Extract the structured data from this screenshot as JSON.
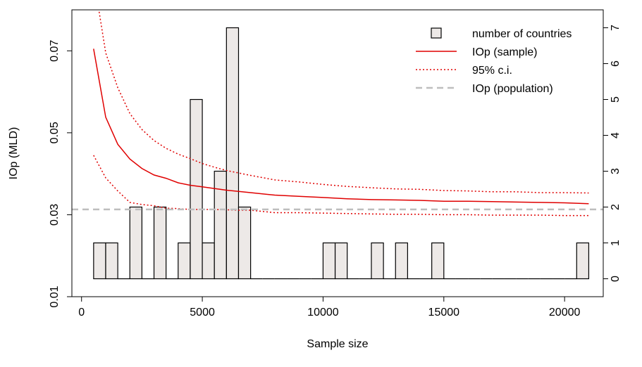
{
  "chart_data": {
    "type": "bar+line",
    "xlabel": "Sample size",
    "ylabel": "IOp (MLD)",
    "xlim": [
      -400,
      21600
    ],
    "ylim_left": [
      0.01,
      0.08
    ],
    "ylim_right": [
      -0.5,
      7.5
    ],
    "x_ticks": [
      0,
      5000,
      10000,
      15000,
      20000
    ],
    "x_tick_labels": [
      "0",
      "5000",
      "10000",
      "15000",
      "20000"
    ],
    "y_ticks_left": [
      0.01,
      0.03,
      0.05,
      0.07
    ],
    "y_tick_labels_left": [
      "0.01",
      "0.03",
      "0.05",
      "0.07"
    ],
    "y_ticks_right": [
      0,
      1,
      2,
      3,
      4,
      5,
      6,
      7
    ],
    "y_tick_labels_right": [
      "0",
      "1",
      "2",
      "3",
      "4",
      "5",
      "6",
      "7"
    ],
    "grid": false,
    "legend": {
      "position": "top-right",
      "entries": [
        {
          "label": "number of countries",
          "style": "box",
          "color": "#EDE9E7"
        },
        {
          "label": "IOp (sample)",
          "style": "solid",
          "color": "#E00000"
        },
        {
          "label": "95% c.i.",
          "style": "dotted",
          "color": "#E00000"
        },
        {
          "label": "IOp (population)",
          "style": "dashed",
          "color": "#BEBEBE"
        }
      ]
    },
    "histogram": {
      "bin_width": 500,
      "fill": "#EDE9E7",
      "bins": [
        {
          "x0": 500,
          "count": 1
        },
        {
          "x0": 1000,
          "count": 1
        },
        {
          "x0": 1500,
          "count": 0
        },
        {
          "x0": 2000,
          "count": 2
        },
        {
          "x0": 2500,
          "count": 0
        },
        {
          "x0": 3000,
          "count": 2
        },
        {
          "x0": 3500,
          "count": 0
        },
        {
          "x0": 4000,
          "count": 1
        },
        {
          "x0": 4500,
          "count": 5
        },
        {
          "x0": 5000,
          "count": 1
        },
        {
          "x0": 5500,
          "count": 3
        },
        {
          "x0": 6000,
          "count": 7
        },
        {
          "x0": 6500,
          "count": 2
        },
        {
          "x0": 7000,
          "count": 0
        },
        {
          "x0": 7500,
          "count": 0
        },
        {
          "x0": 8000,
          "count": 0
        },
        {
          "x0": 8500,
          "count": 0
        },
        {
          "x0": 9000,
          "count": 0
        },
        {
          "x0": 9500,
          "count": 0
        },
        {
          "x0": 10000,
          "count": 1
        },
        {
          "x0": 10500,
          "count": 1
        },
        {
          "x0": 11000,
          "count": 0
        },
        {
          "x0": 11500,
          "count": 0
        },
        {
          "x0": 12000,
          "count": 1
        },
        {
          "x0": 12500,
          "count": 0
        },
        {
          "x0": 13000,
          "count": 1
        },
        {
          "x0": 13500,
          "count": 0
        },
        {
          "x0": 14000,
          "count": 0
        },
        {
          "x0": 14500,
          "count": 1
        },
        {
          "x0": 15000,
          "count": 0
        },
        {
          "x0": 15500,
          "count": 0
        },
        {
          "x0": 16000,
          "count": 0
        },
        {
          "x0": 16500,
          "count": 0
        },
        {
          "x0": 17000,
          "count": 0
        },
        {
          "x0": 17500,
          "count": 0
        },
        {
          "x0": 18000,
          "count": 0
        },
        {
          "x0": 18500,
          "count": 0
        },
        {
          "x0": 19000,
          "count": 0
        },
        {
          "x0": 19500,
          "count": 0
        },
        {
          "x0": 20000,
          "count": 0
        },
        {
          "x0": 20500,
          "count": 1
        }
      ]
    },
    "series": [
      {
        "name": "IOp (sample)",
        "style": "solid",
        "color": "#E00000",
        "x": [
          500,
          1000,
          1500,
          2000,
          2500,
          3000,
          3500,
          4000,
          4500,
          5000,
          5500,
          6000,
          6500,
          7000,
          8000,
          9000,
          10000,
          11000,
          12000,
          13000,
          14000,
          15000,
          16000,
          17000,
          18000,
          19000,
          20000,
          21000
        ],
        "y": [
          0.0705,
          0.0538,
          0.0472,
          0.0436,
          0.0413,
          0.0397,
          0.0389,
          0.0378,
          0.0372,
          0.0368,
          0.0364,
          0.036,
          0.0357,
          0.0354,
          0.0348,
          0.0345,
          0.0342,
          0.0339,
          0.0337,
          0.0336,
          0.0335,
          0.0333,
          0.0333,
          0.0332,
          0.0331,
          0.033,
          0.0329,
          0.0327
        ]
      },
      {
        "name": "95% c.i.",
        "style": "dotted",
        "color": "#E00000",
        "x": [
          500,
          1000,
          1500,
          2000,
          2500,
          3000,
          3500,
          4000,
          4500,
          5000,
          5500,
          6000,
          6500,
          7000,
          8000,
          9000,
          10000,
          11000,
          12000,
          13000,
          14000,
          15000,
          16000,
          17000,
          18000,
          19000,
          20000,
          21000
        ],
        "y": [
          0.088,
          0.0695,
          0.061,
          0.0547,
          0.0508,
          0.0481,
          0.0462,
          0.0448,
          0.0437,
          0.0425,
          0.0416,
          0.0408,
          0.0402,
          0.0396,
          0.0385,
          0.038,
          0.0374,
          0.0369,
          0.0366,
          0.0363,
          0.0362,
          0.0359,
          0.0358,
          0.0356,
          0.0356,
          0.0354,
          0.0354,
          0.0353
        ]
      },
      {
        "name": "95% c.i.",
        "style": "dotted",
        "color": "#E00000",
        "x": [
          500,
          1000,
          1500,
          2000,
          2500,
          3000,
          3500,
          4000,
          4500,
          5000,
          5500,
          6000,
          6500,
          7000,
          8000,
          9000,
          10000,
          11000,
          12000,
          13000,
          14000,
          15000,
          16000,
          17000,
          18000,
          19000,
          20000,
          21000
        ],
        "y": [
          0.0445,
          0.039,
          0.0358,
          0.033,
          0.0325,
          0.0322,
          0.0316,
          0.0315,
          0.0313,
          0.0313,
          0.0313,
          0.0312,
          0.0311,
          0.0311,
          0.0305,
          0.0305,
          0.0304,
          0.0303,
          0.0302,
          0.0301,
          0.0301,
          0.03,
          0.03,
          0.0299,
          0.0299,
          0.0299,
          0.0298,
          0.0298
        ]
      },
      {
        "name": "IOp (population)",
        "style": "dashed",
        "color": "#BEBEBE",
        "x": [
          -400,
          21600
        ],
        "y": [
          0.0313,
          0.0313
        ]
      }
    ]
  }
}
